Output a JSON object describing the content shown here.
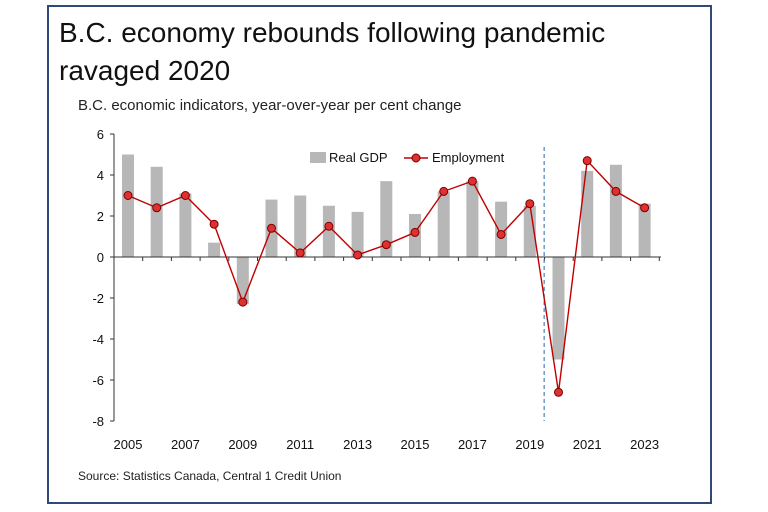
{
  "chart_data": {
    "type": "bar",
    "title": "B.C. economy rebounds following pandemic ravaged 2020",
    "subtitle": "B.C. economic indicators, year-over-year per cent change",
    "source": "Source: Statistics Canada, Central 1 Credit Union",
    "x": [
      2005,
      2006,
      2007,
      2008,
      2009,
      2010,
      2011,
      2012,
      2013,
      2014,
      2015,
      2016,
      2017,
      2018,
      2019,
      2020,
      2021,
      2022,
      2023
    ],
    "x_tick_labels": [
      "2005",
      "2007",
      "2009",
      "2011",
      "2013",
      "2015",
      "2017",
      "2019",
      "2021",
      "2023"
    ],
    "y_tick_labels": [
      "6",
      "4",
      "2",
      "0",
      "-2",
      "-4",
      "-6",
      "-8"
    ],
    "ylim": [
      -8,
      6
    ],
    "grid": false,
    "legend_position": "top-center",
    "reference_line": {
      "type": "vertical-dashed",
      "between": [
        2019,
        2020
      ],
      "color": "#4f81bd"
    },
    "series": [
      {
        "name": "Real GDP",
        "kind": "bar",
        "color": "#b7b7b7",
        "values": [
          5.0,
          4.4,
          3.1,
          0.7,
          -2.3,
          2.8,
          3.0,
          2.5,
          2.2,
          3.7,
          2.1,
          3.2,
          3.7,
          2.7,
          2.5,
          -5.0,
          4.2,
          4.5,
          2.6
        ]
      },
      {
        "name": "Employment",
        "kind": "line",
        "color": "#c00000",
        "marker_fill": "#e03030",
        "values": [
          3.0,
          2.4,
          3.0,
          1.6,
          -2.2,
          1.4,
          0.2,
          1.5,
          0.1,
          0.6,
          1.2,
          3.2,
          3.7,
          1.1,
          2.6,
          -6.6,
          4.7,
          3.2,
          2.4
        ]
      }
    ]
  }
}
